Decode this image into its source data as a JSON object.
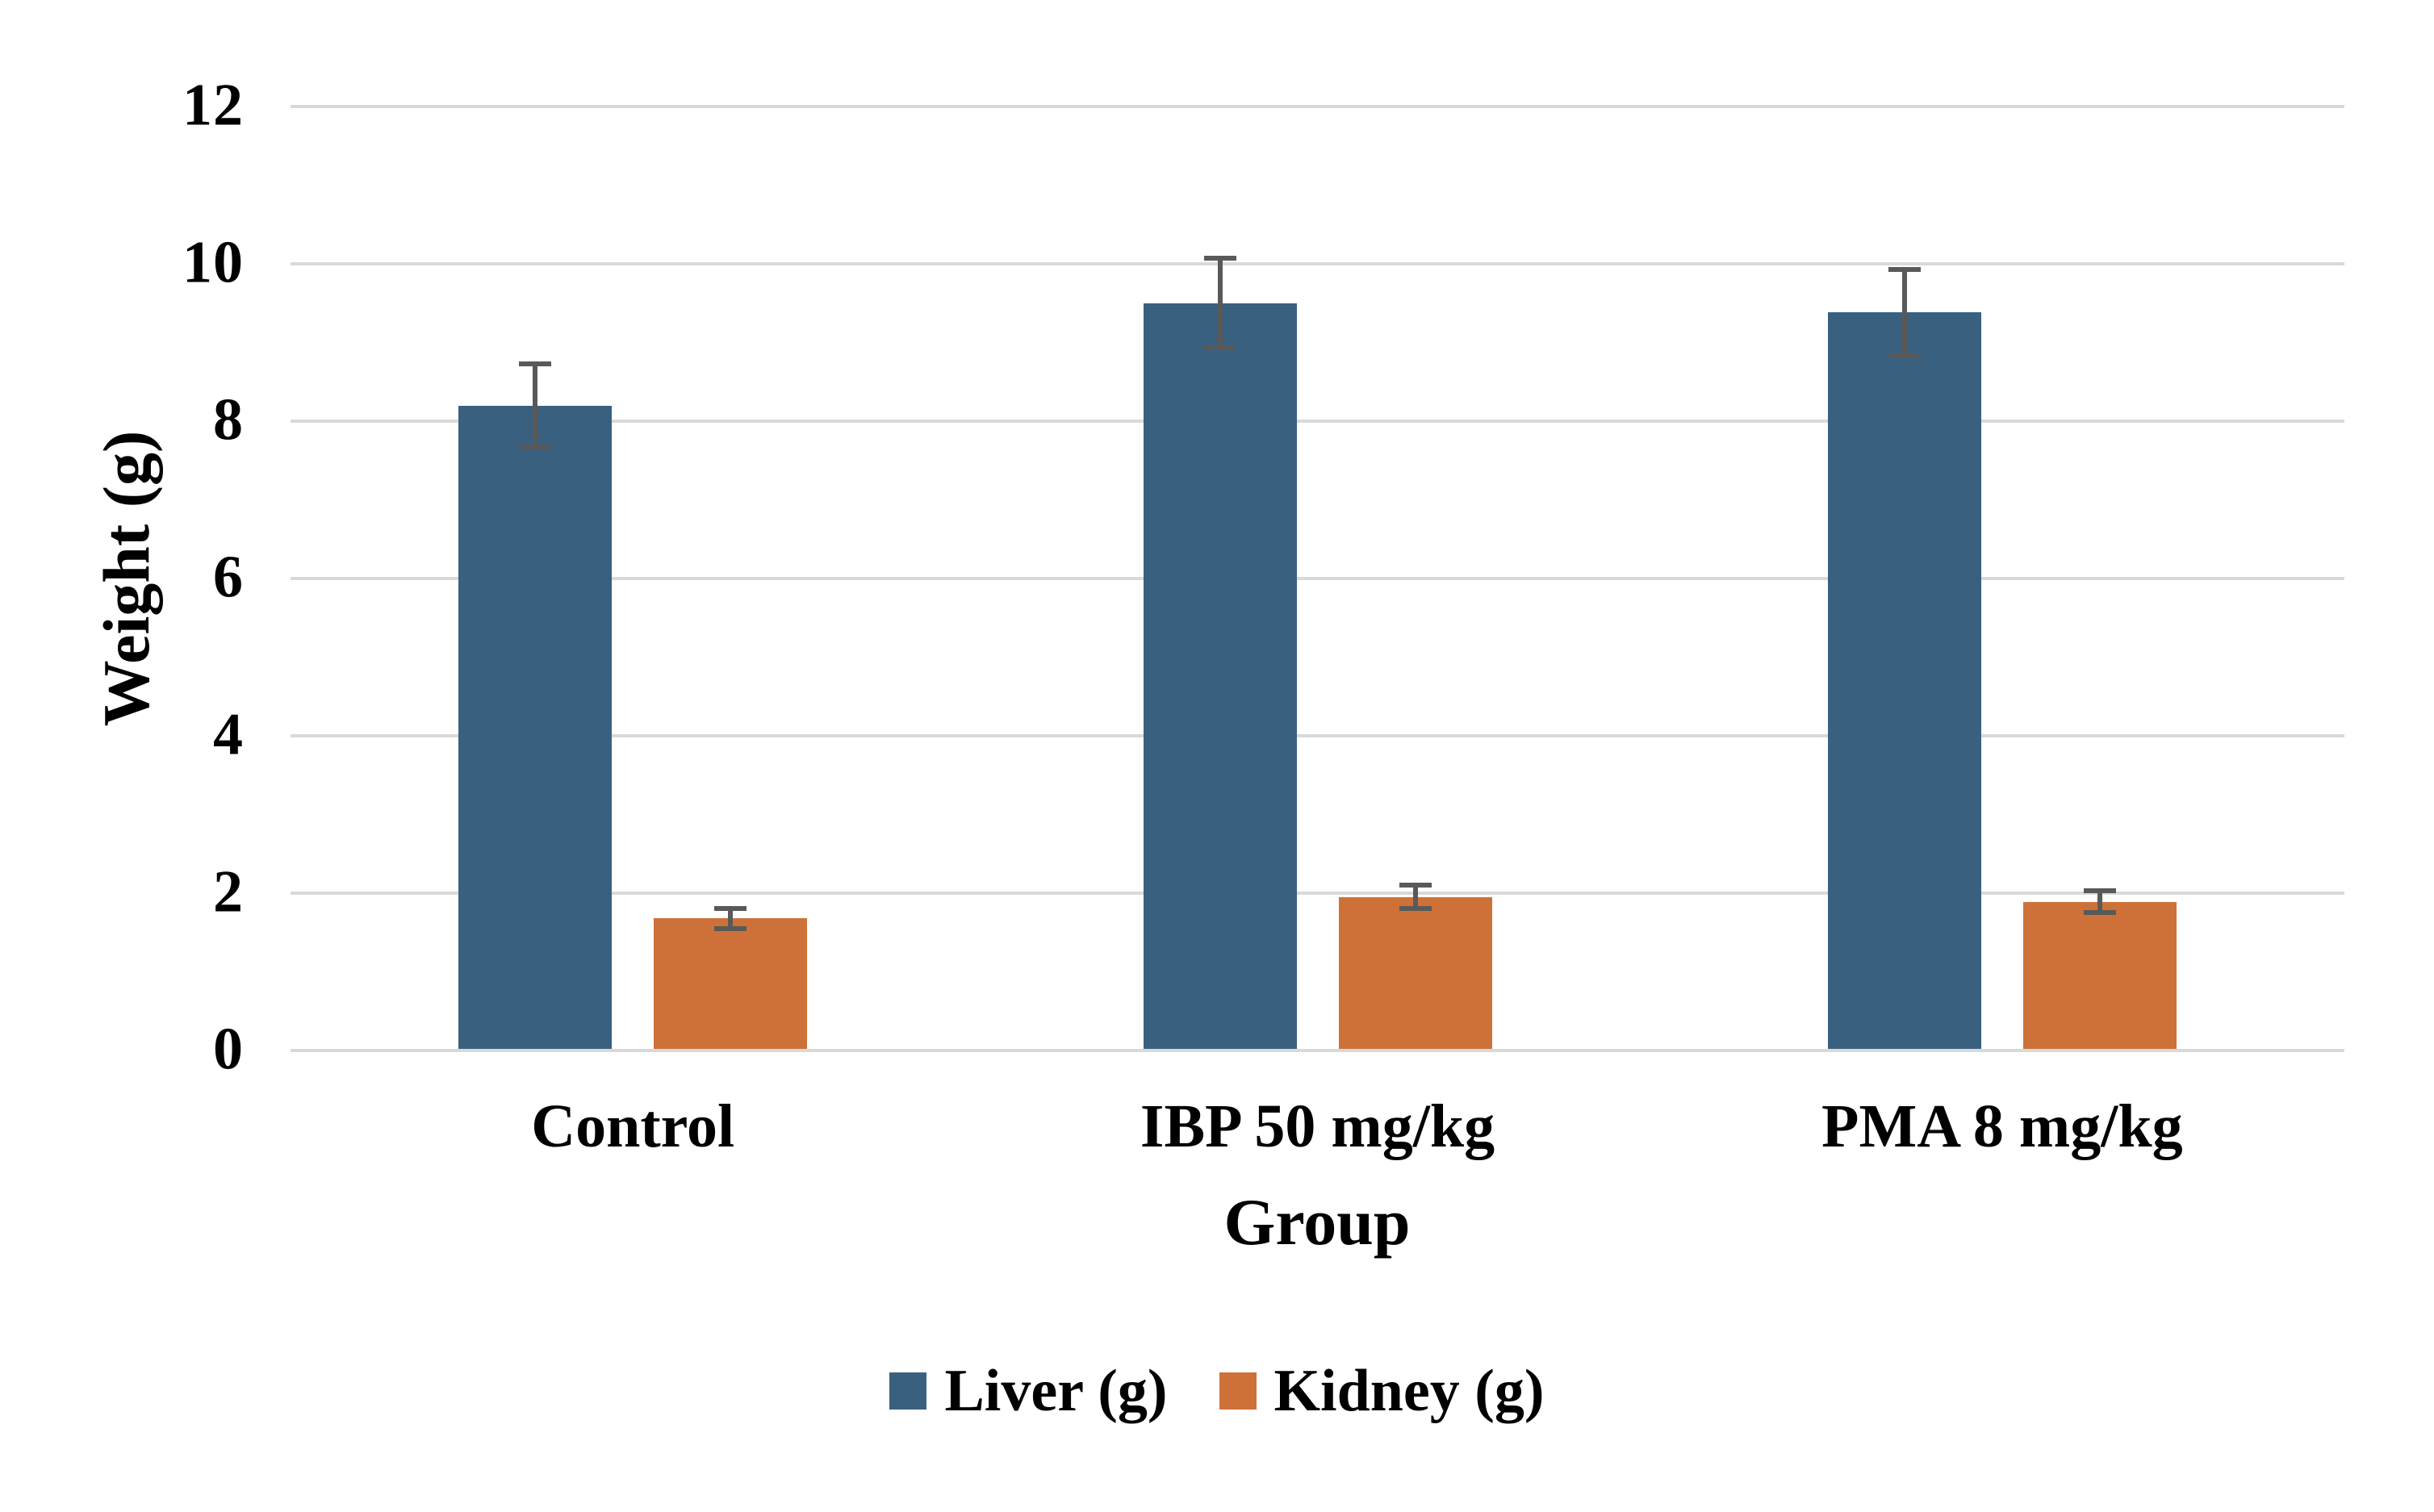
{
  "chart_data": {
    "type": "bar",
    "title": "",
    "xlabel": "Group",
    "ylabel": "Weight (g)",
    "categories": [
      "Control",
      "IBP 50 mg/kg",
      "PMA 8 mg/kg"
    ],
    "series": [
      {
        "name": "Liver (g)",
        "color": "#3A6080",
        "values": [
          8.2,
          9.5,
          9.38
        ],
        "errors": [
          0.56,
          0.6,
          0.58
        ]
      },
      {
        "name": "Kidney (g)",
        "color": "#CE7138",
        "values": [
          1.68,
          1.95,
          1.89
        ],
        "errors": [
          0.16,
          0.18,
          0.17
        ]
      }
    ],
    "ylim": [
      0,
      12
    ],
    "yticks": [
      0,
      2,
      4,
      6,
      8,
      10,
      12
    ],
    "grid": true,
    "legend_position": "bottom",
    "legend_labels": [
      "Liver (g)",
      "Kidney (g)"
    ],
    "gridline_color": "#D9D9D9",
    "error_bar_color": "#595959",
    "background_color": "#FFFFFF"
  }
}
